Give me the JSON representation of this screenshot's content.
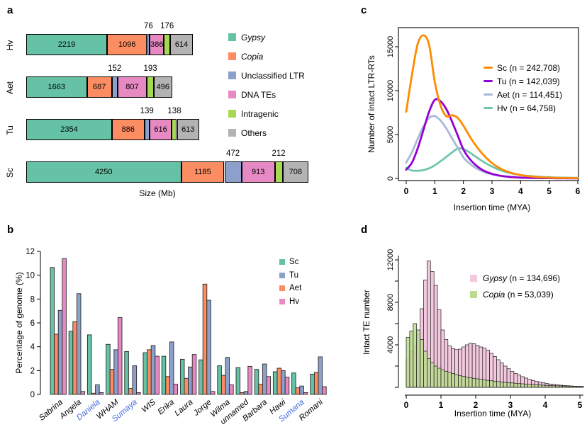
{
  "panels": {
    "a": {
      "letter": "a",
      "xlabel": "Size (Mb)"
    },
    "b": {
      "letter": "b",
      "ylabel": "Percentage of genome (%)"
    },
    "c": {
      "letter": "c",
      "xlabel": "Insertion time (MYA)",
      "ylabel": "Number of intact LTR-RTs"
    },
    "d": {
      "letter": "d",
      "xlabel": "Insertion time (MYA)",
      "ylabel": "Intact TE number"
    }
  },
  "colors": {
    "set2_teal": "#66C2A5",
    "set2_orange": "#FC8D62",
    "set2_blue": "#8DA0CB",
    "set2_pink": "#E78AC3",
    "set2_green": "#A6D854",
    "set2_gray": "#B3B3B3",
    "line_orange": "#FF8A00",
    "line_purple": "#9400D3",
    "line_steelblue": "#A7B9D7",
    "line_teal": "#6FC7A8",
    "hist_pink": "#F3C9DF",
    "hist_green": "#BCDB8F",
    "blue_label": "#4169E1"
  },
  "chart_data": [
    {
      "panel": "a",
      "type": "stacked-bar-horizontal",
      "unit": "Mb",
      "xlabel": "Size (Mb)",
      "segments": [
        {
          "label": "Gypsy",
          "italic": true,
          "color": "#66C2A5"
        },
        {
          "label": "Copia",
          "italic": true,
          "color": "#FC8D62"
        },
        {
          "label": "Unclassified LTR",
          "italic": false,
          "color": "#8DA0CB"
        },
        {
          "label": "DNA TEs",
          "italic": false,
          "color": "#E78AC3"
        },
        {
          "label": "Intragenic",
          "italic": false,
          "color": "#A6D854"
        },
        {
          "label": "Others",
          "italic": false,
          "color": "#B3B3B3"
        }
      ],
      "label_above_indices": [
        2,
        4
      ],
      "rows": [
        {
          "name": "Hv",
          "values": [
            2219,
            1096,
            76,
            386,
            176,
            614
          ]
        },
        {
          "name": "Aet",
          "values": [
            1663,
            687,
            152,
            807,
            193,
            496
          ]
        },
        {
          "name": "Tu",
          "values": [
            2354,
            886,
            139,
            616,
            138,
            613
          ]
        },
        {
          "name": "Sc",
          "values": [
            4250,
            1185,
            472,
            913,
            212,
            708
          ]
        }
      ]
    },
    {
      "panel": "b",
      "type": "grouped-bar",
      "ylabel": "Percentage of genome (%)",
      "ylim": [
        0,
        12
      ],
      "yticks": [
        0,
        2,
        4,
        6,
        8,
        10,
        12
      ],
      "categories": [
        "Sabrina",
        "Angela",
        "Daniela",
        "WHAM",
        "Sumaya",
        "WIS",
        "Erika",
        "Laura",
        "Jorge",
        "Wilma",
        "unnamed",
        "Barbara",
        "Hawi",
        "Sumana",
        "Romani"
      ],
      "blue_categories": [
        "Daniela",
        "Sumaya",
        "Sumana"
      ],
      "series": [
        {
          "name": "Sc",
          "color": "#66C2A5",
          "group_pos": 0,
          "values": [
            10.65,
            5.3,
            5.0,
            4.2,
            3.6,
            3.5,
            3.2,
            2.95,
            2.9,
            2.4,
            2.25,
            2.1,
            1.9,
            1.8,
            1.7
          ]
        },
        {
          "name": "Tu",
          "color": "#8DA0CB",
          "group_pos": 2,
          "values": [
            7.05,
            8.45,
            0.8,
            3.75,
            2.4,
            4.1,
            4.4,
            2.3,
            7.9,
            3.1,
            0.25,
            2.55,
            2.0,
            0.7,
            3.15
          ]
        },
        {
          "name": "Aet",
          "color": "#FC8D62",
          "group_pos": 1,
          "values": [
            5.05,
            6.1,
            0.1,
            2.1,
            0.5,
            3.75,
            1.5,
            1.35,
            9.25,
            1.6,
            0.15,
            0.85,
            2.2,
            0.55,
            1.85
          ]
        },
        {
          "name": "Hv",
          "color": "#E78AC3",
          "group_pos": 3,
          "values": [
            11.4,
            0.25,
            0.15,
            6.45,
            0.15,
            3.2,
            0.85,
            3.35,
            0.25,
            0.8,
            2.35,
            1.5,
            1.45,
            0.15,
            0.65
          ]
        }
      ]
    },
    {
      "panel": "c",
      "type": "line",
      "xlabel": "Insertion time (MYA)",
      "ylabel": "Number of intact LTR-RTs",
      "xticks": [
        0,
        1,
        2,
        3,
        4,
        5,
        6
      ],
      "yticks": [
        0,
        5000,
        10000,
        15000
      ],
      "ylim": [
        0,
        16800
      ],
      "x": [
        0,
        0.2,
        0.4,
        0.6,
        0.8,
        1.0,
        1.2,
        1.4,
        1.6,
        1.8,
        2.0,
        2.2,
        2.4,
        2.6,
        2.8,
        3.0,
        3.2,
        3.4,
        3.6,
        3.8,
        4.0,
        4.2,
        4.4,
        4.6,
        4.8,
        5.0,
        5.2,
        5.4,
        5.6,
        5.8,
        6.0
      ],
      "series": [
        {
          "name": "Sc",
          "n": "242,708",
          "label": "Sc (n = 242,708)",
          "color": "#FF8A00",
          "values": [
            7600,
            11800,
            15300,
            16300,
            15200,
            11000,
            8300,
            7100,
            7200,
            6900,
            6000,
            4900,
            3900,
            3050,
            2350,
            1750,
            1300,
            960,
            710,
            520,
            380,
            280,
            210,
            155,
            115,
            90,
            70,
            55,
            45,
            35,
            30
          ]
        },
        {
          "name": "Tu",
          "n": "142,039",
          "label": "Tu (n = 142,039)",
          "color": "#9400D3",
          "values": [
            1000,
            1800,
            3400,
            5500,
            7600,
            8950,
            8800,
            7900,
            6500,
            4900,
            3300,
            2300,
            1600,
            1100,
            750,
            520,
            360,
            250,
            175,
            125,
            90,
            70,
            55,
            45,
            35,
            30,
            25,
            20,
            20,
            15,
            15
          ]
        },
        {
          "name": "Aet",
          "n": "114,451",
          "label": "Aet (n = 114,451)",
          "color": "#A7B9D7",
          "values": [
            1800,
            3000,
            4500,
            5900,
            6900,
            7100,
            6600,
            5700,
            4600,
            3500,
            2400,
            1750,
            1250,
            900,
            650,
            480,
            350,
            260,
            200,
            150,
            115,
            90,
            75,
            60,
            50,
            45,
            40,
            35,
            30,
            25,
            25
          ]
        },
        {
          "name": "Hv",
          "n": "64,758",
          "label": "Hv (n = 64,758)",
          "color": "#6FC7A8",
          "values": [
            1200,
            900,
            870,
            950,
            1150,
            1500,
            1950,
            2450,
            2950,
            3400,
            3350,
            3000,
            2550,
            2100,
            1700,
            1350,
            1050,
            820,
            640,
            500,
            390,
            310,
            250,
            200,
            165,
            135,
            115,
            100,
            85,
            75,
            70
          ]
        }
      ]
    },
    {
      "panel": "d",
      "type": "histogram",
      "xlabel": "Insertion time (MYA)",
      "ylabel": "Intact TE number",
      "bin_start": 0,
      "bin_width": 0.1,
      "xticks": [
        0,
        1,
        2,
        3,
        4,
        5
      ],
      "yticks_labeled": [
        4000,
        8000,
        12000
      ],
      "ytick_step": 2000,
      "series": [
        {
          "name": "Gypsy",
          "italic_name": true,
          "n": "134,696",
          "label_rest": " (n = 134,696)",
          "color": "#F3C9DF",
          "values": [
            2600,
            3400,
            3900,
            5000,
            7400,
            10100,
            11900,
            10900,
            9600,
            7300,
            5400,
            4500,
            3900,
            3650,
            3550,
            3600,
            3800,
            4000,
            4150,
            4100,
            3950,
            3800,
            3700,
            3500,
            3200,
            2900,
            2600,
            2300,
            2000,
            1750,
            1500,
            1300,
            1150,
            1000,
            870,
            750,
            650,
            560,
            480,
            420,
            360,
            310,
            270,
            230,
            200,
            170,
            150,
            130,
            110,
            100,
            95
          ]
        },
        {
          "name": "Copia",
          "italic_name": true,
          "n": "53,039",
          "label_rest": " (n = 53,039)",
          "color": "#BCDB8F",
          "values": [
            4700,
            5300,
            6000,
            5400,
            4500,
            3400,
            2700,
            2300,
            2000,
            1800,
            1650,
            1500,
            1400,
            1300,
            1200,
            1100,
            1020,
            950,
            900,
            850,
            800,
            750,
            700,
            660,
            620,
            580,
            540,
            500,
            470,
            440,
            410,
            380,
            350,
            330,
            300,
            280,
            260,
            240,
            220,
            200,
            185,
            170,
            155,
            140,
            130,
            120,
            110,
            100,
            90,
            85,
            80
          ]
        }
      ]
    }
  ]
}
